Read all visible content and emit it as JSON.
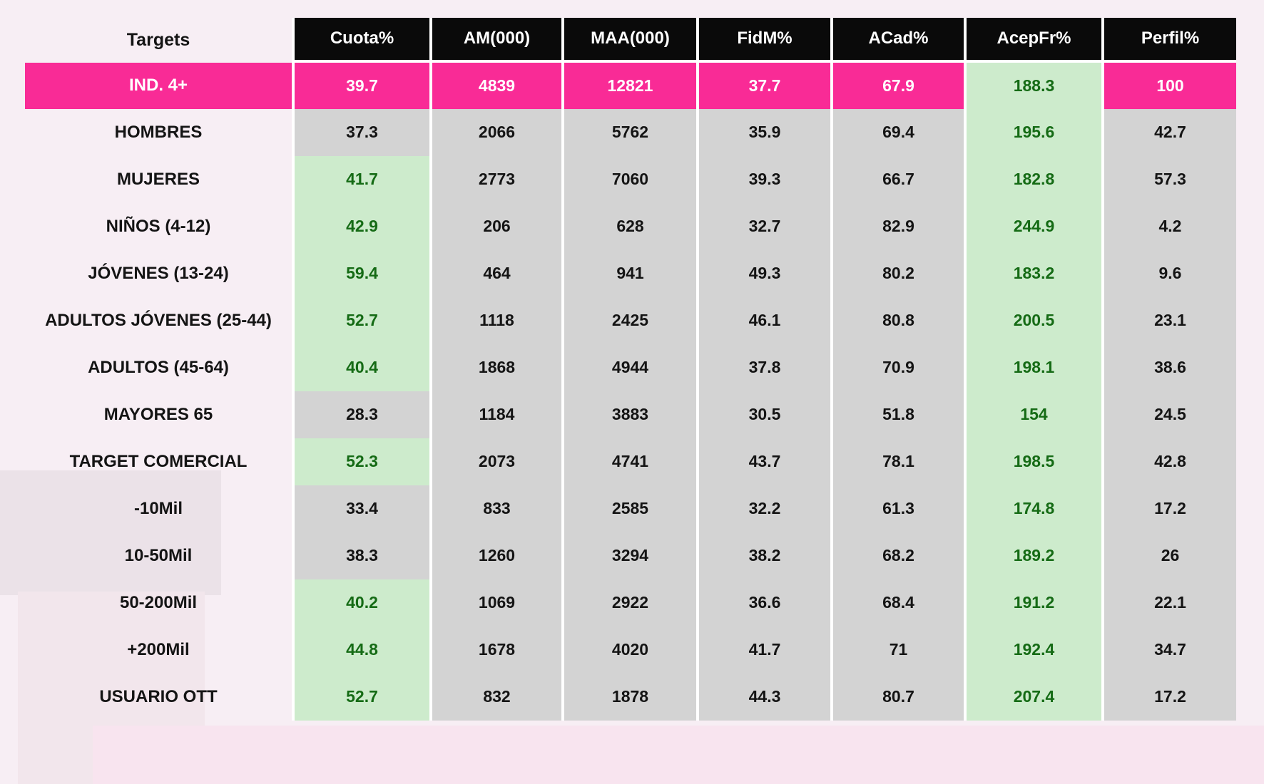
{
  "colors": {
    "accent_pink": "#F92B96",
    "header_bg": "#0A0A0A",
    "cell_gray": "#D3D3D3",
    "cell_green": "#CDEBCC",
    "text_green": "#156B15",
    "page_bg": "#F7EEF4",
    "separator": "#FFFFFF"
  },
  "chart_data": {
    "type": "table",
    "columns": [
      "Targets",
      "Cuota%",
      "AM(000)",
      "MAA(000)",
      "FidM%",
      "ACad%",
      "AcepFr%",
      "Perfil%"
    ],
    "rows": [
      {
        "label": "IND. 4+",
        "values": [
          "39.7",
          "4839",
          "12821",
          "37.7",
          "67.9",
          "188.3",
          "100"
        ],
        "is_total": true,
        "cuota_green": false
      },
      {
        "label": "HOMBRES",
        "values": [
          "37.3",
          "2066",
          "5762",
          "35.9",
          "69.4",
          "195.6",
          "42.7"
        ],
        "is_total": false,
        "cuota_green": false
      },
      {
        "label": "MUJERES",
        "values": [
          "41.7",
          "2773",
          "7060",
          "39.3",
          "66.7",
          "182.8",
          "57.3"
        ],
        "is_total": false,
        "cuota_green": true
      },
      {
        "label": "NIÑOS (4-12)",
        "values": [
          "42.9",
          "206",
          "628",
          "32.7",
          "82.9",
          "244.9",
          "4.2"
        ],
        "is_total": false,
        "cuota_green": true
      },
      {
        "label": "JÓVENES (13-24)",
        "values": [
          "59.4",
          "464",
          "941",
          "49.3",
          "80.2",
          "183.2",
          "9.6"
        ],
        "is_total": false,
        "cuota_green": true
      },
      {
        "label": "ADULTOS JÓVENES (25-44)",
        "values": [
          "52.7",
          "1118",
          "2425",
          "46.1",
          "80.8",
          "200.5",
          "23.1"
        ],
        "is_total": false,
        "cuota_green": true
      },
      {
        "label": "ADULTOS (45-64)",
        "values": [
          "40.4",
          "1868",
          "4944",
          "37.8",
          "70.9",
          "198.1",
          "38.6"
        ],
        "is_total": false,
        "cuota_green": true
      },
      {
        "label": "MAYORES 65",
        "values": [
          "28.3",
          "1184",
          "3883",
          "30.5",
          "51.8",
          "154",
          "24.5"
        ],
        "is_total": false,
        "cuota_green": false
      },
      {
        "label": "TARGET COMERCIAL",
        "values": [
          "52.3",
          "2073",
          "4741",
          "43.7",
          "78.1",
          "198.5",
          "42.8"
        ],
        "is_total": false,
        "cuota_green": true
      },
      {
        "label": "-10Mil",
        "values": [
          "33.4",
          "833",
          "2585",
          "32.2",
          "61.3",
          "174.8",
          "17.2"
        ],
        "is_total": false,
        "cuota_green": false
      },
      {
        "label": "10-50Mil",
        "values": [
          "38.3",
          "1260",
          "3294",
          "38.2",
          "68.2",
          "189.2",
          "26"
        ],
        "is_total": false,
        "cuota_green": false
      },
      {
        "label": "50-200Mil",
        "values": [
          "40.2",
          "1069",
          "2922",
          "36.6",
          "68.4",
          "191.2",
          "22.1"
        ],
        "is_total": false,
        "cuota_green": true
      },
      {
        "label": "+200Mil",
        "values": [
          "44.8",
          "1678",
          "4020",
          "41.7",
          "71",
          "192.4",
          "34.7"
        ],
        "is_total": false,
        "cuota_green": true
      },
      {
        "label": "USUARIO OTT",
        "values": [
          "52.7",
          "832",
          "1878",
          "44.3",
          "80.7",
          "207.4",
          "17.2"
        ],
        "is_total": false,
        "cuota_green": true
      }
    ]
  }
}
